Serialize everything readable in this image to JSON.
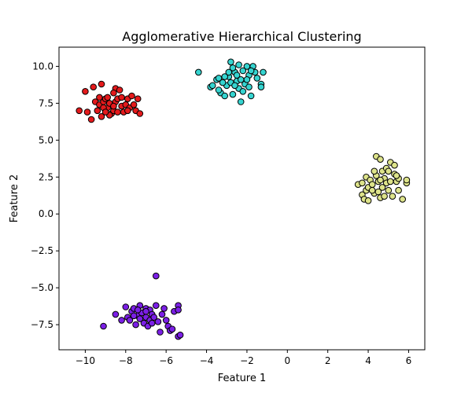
{
  "chart_data": {
    "type": "scatter",
    "title": "Agglomerative Hierarchical Clustering",
    "xlabel": "Feature 1",
    "ylabel": "Feature 2",
    "xlim": [
      -11.3,
      6.8
    ],
    "ylim": [
      -9.2,
      11.3
    ],
    "xticks": [
      -10,
      -8,
      -6,
      -4,
      -2,
      0,
      2,
      4,
      6
    ],
    "xtick_labels": [
      "−10",
      "−8",
      "−6",
      "−4",
      "−2",
      "0",
      "2",
      "4",
      "6"
    ],
    "yticks": [
      -7.5,
      -5.0,
      -2.5,
      0.0,
      2.5,
      5.0,
      7.5,
      10.0
    ],
    "ytick_labels": [
      "−7.5",
      "−5.0",
      "−2.5",
      "0.0",
      "2.5",
      "5.0",
      "7.5",
      "10.0"
    ],
    "grid": false,
    "legend": "none",
    "series": [
      {
        "color": "#e41a1c",
        "points": [
          [
            -10.3,
            7.0
          ],
          [
            -9.9,
            6.9
          ],
          [
            -9.7,
            6.4
          ],
          [
            -10.0,
            8.3
          ],
          [
            -9.6,
            8.6
          ],
          [
            -9.2,
            8.8
          ],
          [
            -9.5,
            7.6
          ],
          [
            -9.3,
            7.4
          ],
          [
            -9.4,
            7.0
          ],
          [
            -9.1,
            7.6
          ],
          [
            -9.0,
            7.8
          ],
          [
            -8.9,
            7.2
          ],
          [
            -8.8,
            7.5
          ],
          [
            -8.7,
            6.8
          ],
          [
            -8.6,
            7.0
          ],
          [
            -8.5,
            7.6
          ],
          [
            -8.5,
            8.5
          ],
          [
            -8.6,
            8.2
          ],
          [
            -8.3,
            8.4
          ],
          [
            -8.4,
            7.8
          ],
          [
            -8.2,
            7.3
          ],
          [
            -8.1,
            6.9
          ],
          [
            -8.0,
            7.4
          ],
          [
            -7.9,
            7.8
          ],
          [
            -7.8,
            7.2
          ],
          [
            -7.7,
            8.0
          ],
          [
            -7.6,
            7.4
          ],
          [
            -7.5,
            7.0
          ],
          [
            -7.3,
            6.8
          ],
          [
            -7.4,
            7.8
          ],
          [
            -9.1,
            7.2
          ],
          [
            -9.2,
            6.6
          ],
          [
            -9.3,
            7.9
          ],
          [
            -8.8,
            6.7
          ],
          [
            -8.4,
            6.9
          ],
          [
            -7.9,
            7.0
          ],
          [
            -8.2,
            7.9
          ],
          [
            -8.9,
            7.9
          ],
          [
            -9.0,
            6.9
          ],
          [
            -8.6,
            7.3
          ]
        ]
      },
      {
        "color": "#35d4d0",
        "points": [
          [
            -4.4,
            9.6
          ],
          [
            -3.8,
            8.6
          ],
          [
            -3.5,
            9.1
          ],
          [
            -3.4,
            9.2
          ],
          [
            -3.3,
            8.2
          ],
          [
            -3.1,
            8.0
          ],
          [
            -3.0,
            8.7
          ],
          [
            -2.9,
            9.3
          ],
          [
            -2.8,
            10.3
          ],
          [
            -2.8,
            8.9
          ],
          [
            -2.6,
            9.6
          ],
          [
            -2.5,
            9.0
          ],
          [
            -2.4,
            8.5
          ],
          [
            -2.4,
            10.1
          ],
          [
            -2.3,
            7.6
          ],
          [
            -2.2,
            9.7
          ],
          [
            -2.1,
            8.8
          ],
          [
            -2.0,
            10.0
          ],
          [
            -1.9,
            9.4
          ],
          [
            -1.8,
            8.0
          ],
          [
            -1.7,
            10.0
          ],
          [
            -1.6,
            9.6
          ],
          [
            -1.5,
            9.2
          ],
          [
            -1.3,
            8.8
          ],
          [
            -1.2,
            9.6
          ],
          [
            -1.3,
            8.6
          ],
          [
            -3.7,
            8.7
          ],
          [
            -3.2,
            8.9
          ],
          [
            -2.7,
            8.1
          ],
          [
            -2.5,
            9.4
          ],
          [
            -2.2,
            8.3
          ],
          [
            -2.0,
            9.1
          ],
          [
            -1.8,
            9.7
          ],
          [
            -2.6,
            8.7
          ],
          [
            -2.9,
            9.6
          ],
          [
            -3.1,
            9.3
          ],
          [
            -2.3,
            9.1
          ],
          [
            -1.9,
            8.6
          ],
          [
            -2.7,
            9.9
          ],
          [
            -3.4,
            8.4
          ]
        ]
      },
      {
        "color": "#dde38a",
        "points": [
          [
            3.5,
            2.0
          ],
          [
            3.7,
            2.1
          ],
          [
            3.7,
            1.3
          ],
          [
            3.8,
            1.0
          ],
          [
            3.9,
            2.5
          ],
          [
            3.9,
            1.6
          ],
          [
            4.0,
            0.9
          ],
          [
            4.0,
            1.8
          ],
          [
            4.1,
            2.3
          ],
          [
            4.2,
            2.0
          ],
          [
            4.3,
            1.4
          ],
          [
            4.4,
            3.9
          ],
          [
            4.4,
            2.6
          ],
          [
            4.5,
            2.2
          ],
          [
            4.5,
            1.5
          ],
          [
            4.6,
            3.7
          ],
          [
            4.6,
            1.1
          ],
          [
            4.7,
            2.9
          ],
          [
            4.7,
            1.8
          ],
          [
            4.8,
            2.4
          ],
          [
            4.8,
            1.2
          ],
          [
            4.9,
            3.1
          ],
          [
            4.9,
            2.1
          ],
          [
            5.0,
            1.6
          ],
          [
            5.1,
            3.5
          ],
          [
            5.1,
            2.2
          ],
          [
            5.2,
            1.2
          ],
          [
            5.3,
            3.3
          ],
          [
            5.3,
            2.7
          ],
          [
            5.4,
            2.2
          ],
          [
            5.5,
            1.6
          ],
          [
            5.5,
            2.4
          ],
          [
            5.7,
            1.0
          ],
          [
            5.9,
            2.1
          ],
          [
            5.9,
            2.3
          ],
          [
            4.2,
            1.6
          ],
          [
            4.6,
            2.3
          ],
          [
            5.0,
            2.9
          ],
          [
            5.4,
            2.6
          ],
          [
            4.3,
            2.9
          ]
        ]
      },
      {
        "color": "#7b1fe6",
        "points": [
          [
            -9.1,
            -7.6
          ],
          [
            -8.5,
            -6.8
          ],
          [
            -8.2,
            -7.2
          ],
          [
            -8.0,
            -6.3
          ],
          [
            -7.9,
            -7.0
          ],
          [
            -7.8,
            -7.2
          ],
          [
            -7.7,
            -6.6
          ],
          [
            -7.6,
            -6.4
          ],
          [
            -7.5,
            -7.5
          ],
          [
            -7.4,
            -6.9
          ],
          [
            -7.3,
            -6.2
          ],
          [
            -7.3,
            -7.1
          ],
          [
            -7.2,
            -6.7
          ],
          [
            -7.1,
            -7.4
          ],
          [
            -7.0,
            -6.4
          ],
          [
            -7.0,
            -7.0
          ],
          [
            -6.9,
            -7.6
          ],
          [
            -6.8,
            -6.5
          ],
          [
            -6.8,
            -7.2
          ],
          [
            -6.7,
            -6.8
          ],
          [
            -6.6,
            -7.0
          ],
          [
            -6.5,
            -6.2
          ],
          [
            -6.5,
            -4.2
          ],
          [
            -6.4,
            -7.3
          ],
          [
            -6.3,
            -8.0
          ],
          [
            -6.2,
            -6.8
          ],
          [
            -6.0,
            -7.2
          ],
          [
            -5.9,
            -7.6
          ],
          [
            -5.8,
            -7.9
          ],
          [
            -5.7,
            -7.8
          ],
          [
            -5.6,
            -6.6
          ],
          [
            -5.4,
            -6.2
          ],
          [
            -5.4,
            -6.5
          ],
          [
            -5.4,
            -8.3
          ],
          [
            -5.3,
            -8.2
          ],
          [
            -7.6,
            -6.9
          ],
          [
            -7.0,
            -6.6
          ],
          [
            -6.7,
            -7.4
          ],
          [
            -7.4,
            -6.5
          ],
          [
            -6.1,
            -6.4
          ]
        ]
      }
    ]
  }
}
